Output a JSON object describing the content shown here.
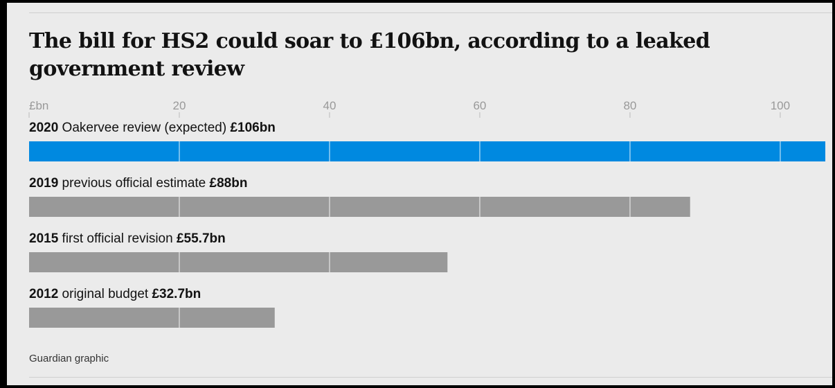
{
  "title": "The bill for HS2 could soar to £106bn, according to a leaked government review",
  "source": "Guardian graphic",
  "colors": {
    "highlight": "#0089e0",
    "default": "#999999",
    "background": "#ebebeb",
    "axis_text": "#999999"
  },
  "chart_data": {
    "type": "bar",
    "orientation": "horizontal",
    "title": "The bill for HS2 could soar to £106bn, according to a leaked government review",
    "unit_label": "£bn",
    "xlim": [
      0,
      106
    ],
    "ticks": [
      20,
      40,
      60,
      80,
      100
    ],
    "grid": true,
    "bars": [
      {
        "year": "2020",
        "label": "Oakervee review (expected)",
        "value_label": "£106bn",
        "value": 106,
        "color": "#0089e0"
      },
      {
        "year": "2019",
        "label": "previous official estimate",
        "value_label": "£88bn",
        "value": 88,
        "color": "#999999"
      },
      {
        "year": "2015",
        "label": "first official revision",
        "value_label": "£55.7bn",
        "value": 55.7,
        "color": "#999999"
      },
      {
        "year": "2012",
        "label": "original budget",
        "value_label": "£32.7bn",
        "value": 32.7,
        "color": "#999999"
      }
    ]
  }
}
